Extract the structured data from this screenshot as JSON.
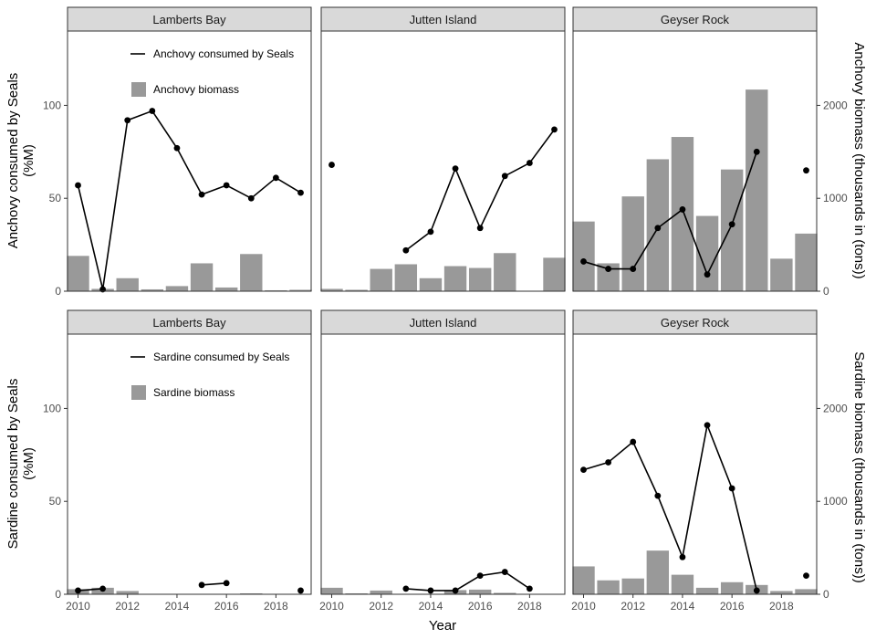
{
  "chart_data": {
    "type": "bar+line",
    "years": [
      2010,
      2011,
      2012,
      2013,
      2014,
      2015,
      2016,
      2017,
      2018,
      2019
    ],
    "x_ticks": [
      "2010",
      "2012",
      "2014",
      "2016",
      "2018"
    ],
    "xlabel": "Year",
    "left_ylim": [
      0,
      140
    ],
    "left_ticks": [
      "0",
      "50",
      "100"
    ],
    "right_ylim": [
      0,
      2800
    ],
    "right_ticks": [
      "0",
      "1000",
      "2000"
    ],
    "colors": {
      "bar": "#999999",
      "line": "#000000",
      "strip": "#d9d9d9",
      "frame": "#333333"
    },
    "rows": [
      {
        "ylabel_line1": "Anchovy consumed by Seals",
        "ylabel_line2": "(%M)",
        "y2label": "Anchovy biomass (thousands in (tons))",
        "legend_line": "Anchovy consumed by Seals",
        "legend_bar": "Anchovy biomass",
        "panels": [
          {
            "title": "Lamberts Bay",
            "line_values": [
              57,
              1,
              92,
              97,
              77,
              52,
              57,
              50,
              61,
              53
            ],
            "bar_values": [
              380,
              25,
              140,
              20,
              55,
              300,
              40,
              400,
              10,
              15
            ]
          },
          {
            "title": "Jutten Island",
            "line_values": [
              68,
              null,
              null,
              22,
              32,
              66,
              34,
              62,
              69,
              87
            ],
            "bar_values": [
              25,
              15,
              240,
              290,
              140,
              270,
              250,
              410,
              5,
              360
            ]
          },
          {
            "title": "Geyser Rock",
            "line_values": [
              16,
              12,
              12,
              34,
              44,
              9,
              36,
              75,
              null,
              65
            ],
            "bar_values": [
              750,
              300,
              1020,
              1420,
              1660,
              810,
              1310,
              2170,
              350,
              620
            ]
          }
        ]
      },
      {
        "ylabel_line1": "Sardine consumed by Seals",
        "ylabel_line2": "(%M)",
        "y2label": "Sardine biomass (thousands in (tons))",
        "legend_line": "Sardine consumed by Seals",
        "legend_bar": "Sardine biomass",
        "panels": [
          {
            "title": "Lamberts Bay",
            "line_values": [
              2,
              3,
              null,
              null,
              null,
              5,
              6,
              null,
              null,
              2
            ],
            "bar_values": [
              55,
              70,
              35,
              0,
              0,
              0,
              0,
              10,
              0,
              0
            ]
          },
          {
            "title": "Jutten Island",
            "line_values": [
              null,
              null,
              null,
              3,
              2,
              2,
              10,
              12,
              3,
              null
            ],
            "bar_values": [
              70,
              10,
              40,
              0,
              0,
              45,
              50,
              15,
              0,
              0
            ]
          },
          {
            "title": "Geyser Rock",
            "line_values": [
              67,
              71,
              82,
              53,
              20,
              91,
              57,
              2,
              null,
              10
            ],
            "bar_values": [
              300,
              150,
              170,
              470,
              210,
              70,
              130,
              100,
              35,
              55
            ]
          }
        ]
      }
    ]
  }
}
